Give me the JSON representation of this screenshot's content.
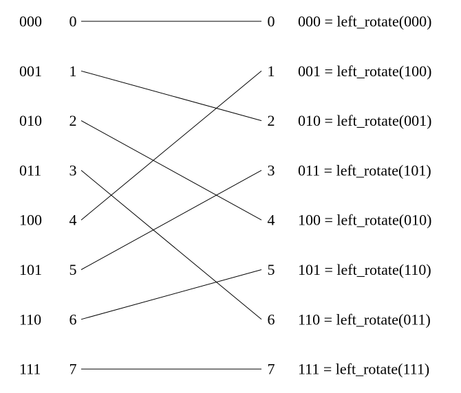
{
  "diagram": {
    "binary_labels": [
      "000",
      "001",
      "010",
      "011",
      "100",
      "101",
      "110",
      "111"
    ],
    "left_nodes": [
      "0",
      "1",
      "2",
      "3",
      "4",
      "5",
      "6",
      "7"
    ],
    "right_nodes": [
      "0",
      "1",
      "2",
      "3",
      "4",
      "5",
      "6",
      "7"
    ],
    "equations": [
      "000 = left_rotate(000)",
      "001 = left_rotate(100)",
      "010 = left_rotate(001)",
      "011 = left_rotate(101)",
      "100 = left_rotate(010)",
      "101 = left_rotate(110)",
      "110 = left_rotate(011)",
      "111 = left_rotate(111)"
    ],
    "connections": [
      {
        "from": 0,
        "to": 0
      },
      {
        "from": 1,
        "to": 2
      },
      {
        "from": 2,
        "to": 4
      },
      {
        "from": 3,
        "to": 6
      },
      {
        "from": 4,
        "to": 1
      },
      {
        "from": 5,
        "to": 3
      },
      {
        "from": 6,
        "to": 5
      },
      {
        "from": 7,
        "to": 7
      }
    ],
    "line_color": "#000000",
    "text_color": "#000000"
  }
}
